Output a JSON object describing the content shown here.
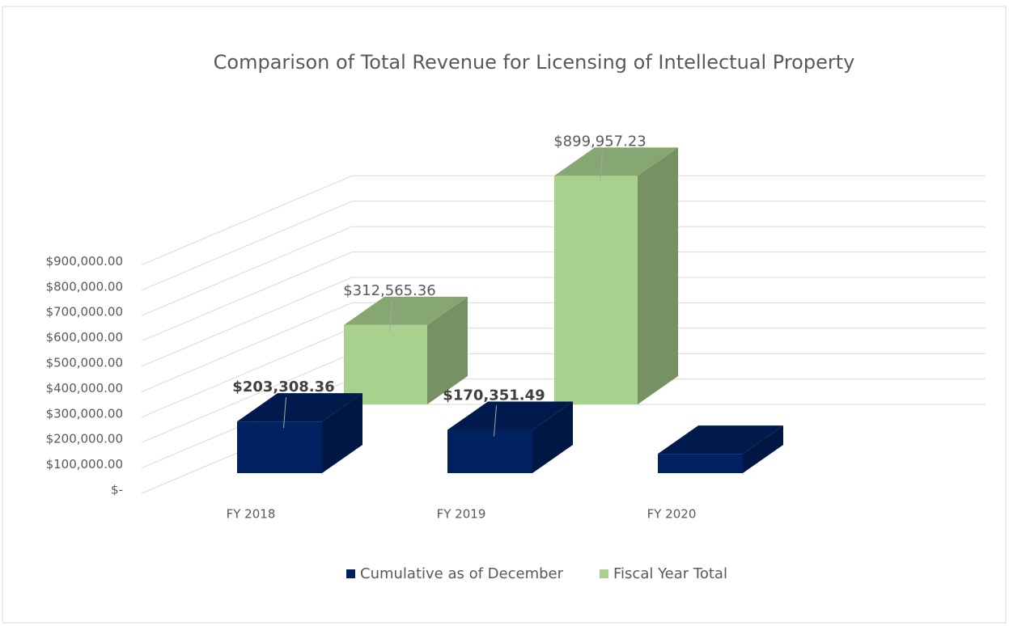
{
  "chart_data": {
    "type": "bar3d",
    "title": "Comparison of Total Revenue for Licensing of Intellectual Property",
    "categories": [
      "FY 2018",
      "FY 2019",
      "FY 2020"
    ],
    "series": [
      {
        "name": "Cumulative as of December",
        "color": "#002060",
        "values": [
          203308.36,
          170351.49,
          76000
        ],
        "value_labels": [
          "$203,308.36",
          "$170,351.49",
          null
        ]
      },
      {
        "name": "Fiscal Year Total",
        "color": "#a9d18e",
        "values": [
          312565.36,
          899957.23,
          null
        ],
        "value_labels": [
          "$312,565.36",
          "$899,957.23",
          null
        ]
      }
    ],
    "ylim": [
      0,
      1000000
    ],
    "yticks": [
      {
        "value": 0,
        "label": "$-"
      },
      {
        "value": 100000,
        "label": "$100,000.00"
      },
      {
        "value": 200000,
        "label": "$200,000.00"
      },
      {
        "value": 300000,
        "label": "$300,000.00"
      },
      {
        "value": 400000,
        "label": "$400,000.00"
      },
      {
        "value": 500000,
        "label": "$500,000.00"
      },
      {
        "value": 600000,
        "label": "$600,000.00"
      },
      {
        "value": 700000,
        "label": "$700,000.00"
      },
      {
        "value": 800000,
        "label": "$800,000.00"
      },
      {
        "value": 900000,
        "label": "$900,000.00"
      }
    ],
    "grid": true,
    "legend": "bottom"
  }
}
